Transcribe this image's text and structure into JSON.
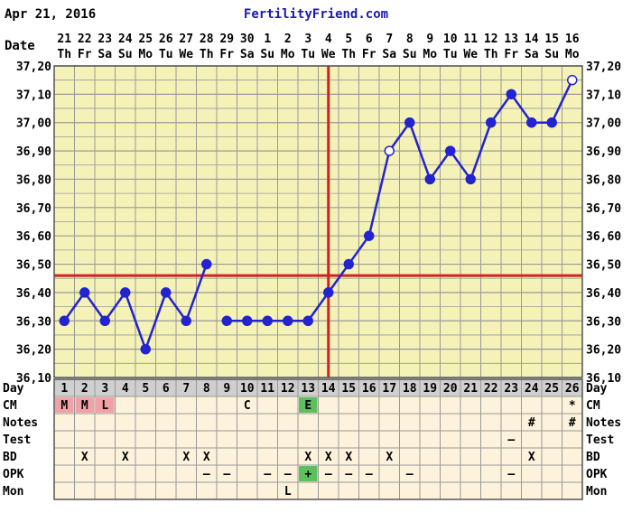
{
  "header": {
    "date": "Apr 21, 2016",
    "site": "FertilityFriend.com"
  },
  "labels": {
    "date": "Date",
    "day": "Day",
    "cm": "CM",
    "notes": "Notes",
    "test": "Test",
    "bd": "BD",
    "opk": "OPK",
    "mon": "Mon"
  },
  "colors": {
    "background": "#ffffff",
    "plot_bg": "#f5f2b8",
    "grid": "#999999",
    "line": "#2323d0",
    "coverline": "#d42020",
    "table_bg": "#fdf3dc",
    "header_row_bg": "#cfcfcf",
    "menses_bg": "#f4a0a8",
    "egg_white_bg": "#5cc15c",
    "opk_positive_bg": "#5cc15c",
    "site_link": "#1a1ab0"
  },
  "chart_data": {
    "type": "line",
    "title": "",
    "xlabel": "Day",
    "ylabel": "",
    "ylim": [
      36.1,
      37.2
    ],
    "yticks": [
      "36,10",
      "36,20",
      "36,30",
      "36,40",
      "36,50",
      "36,60",
      "36,70",
      "36,80",
      "36,90",
      "37,00",
      "37,10",
      "37,20"
    ],
    "grid": true,
    "cycle_days": [
      1,
      2,
      3,
      4,
      5,
      6,
      7,
      8,
      9,
      10,
      11,
      12,
      13,
      14,
      15,
      16,
      17,
      18,
      19,
      20,
      21,
      22,
      23,
      24,
      25,
      26
    ],
    "dates": [
      "21",
      "22",
      "23",
      "24",
      "25",
      "26",
      "27",
      "28",
      "29",
      "30",
      "1",
      "2",
      "3",
      "4",
      "5",
      "6",
      "7",
      "8",
      "9",
      "10",
      "11",
      "12",
      "13",
      "14",
      "15",
      "16"
    ],
    "weekdays": [
      "Th",
      "Fr",
      "Sa",
      "Su",
      "Mo",
      "Tu",
      "We",
      "Th",
      "Fr",
      "Sa",
      "Su",
      "Mo",
      "Tu",
      "We",
      "Th",
      "Fr",
      "Sa",
      "Su",
      "Mo",
      "Tu",
      "We",
      "Th",
      "Fr",
      "Sa",
      "Su",
      "Mo"
    ],
    "series": [
      {
        "values": [
          36.3,
          36.4,
          36.3,
          36.4,
          36.2,
          36.4,
          36.3,
          36.5,
          36.3,
          36.3,
          36.3,
          36.3,
          36.3,
          36.4,
          36.5,
          36.6,
          36.9,
          37.0,
          36.8,
          36.9,
          36.8,
          37.0,
          37.1,
          37.0,
          37.0,
          37.15
        ],
        "open_markers": [
          17,
          26
        ]
      }
    ],
    "coverline": 36.46,
    "ovulation_day": 14,
    "gaps_after_days": [
      8
    ]
  },
  "rows": {
    "cm": [
      "M",
      "M",
      "L",
      "",
      "",
      "",
      "",
      "",
      "",
      "C",
      "",
      "",
      "E",
      "",
      "",
      "",
      "",
      "",
      "",
      "",
      "",
      "",
      "",
      "",
      "",
      "*"
    ],
    "notes": [
      "",
      "",
      "",
      "",
      "",
      "",
      "",
      "",
      "",
      "",
      "",
      "",
      "",
      "",
      "",
      "",
      "",
      "",
      "",
      "",
      "",
      "",
      "",
      "#",
      "",
      "#"
    ],
    "test": [
      "",
      "",
      "",
      "",
      "",
      "",
      "",
      "",
      "",
      "",
      "",
      "",
      "",
      "",
      "",
      "",
      "",
      "",
      "",
      "",
      "",
      "",
      "–",
      "",
      "",
      ""
    ],
    "bd": [
      "",
      "X",
      "",
      "X",
      "",
      "",
      "X",
      "X",
      "",
      "",
      "",
      "",
      "X",
      "X",
      "X",
      "",
      "X",
      "",
      "",
      "",
      "",
      "",
      "",
      "X",
      "",
      ""
    ],
    "opk": [
      "",
      "",
      "",
      "",
      "",
      "",
      "",
      "–",
      "–",
      "",
      "–",
      "–",
      "+",
      "–",
      "–",
      "–",
      "",
      "–",
      "",
      "",
      "",
      "",
      "–",
      "",
      "",
      ""
    ],
    "mon": [
      "",
      "",
      "",
      "",
      "",
      "",
      "",
      "",
      "",
      "",
      "",
      "L",
      "",
      "",
      "",
      "",
      "",
      "",
      "",
      "",
      "",
      "",
      "",
      "",
      "",
      ""
    ]
  }
}
